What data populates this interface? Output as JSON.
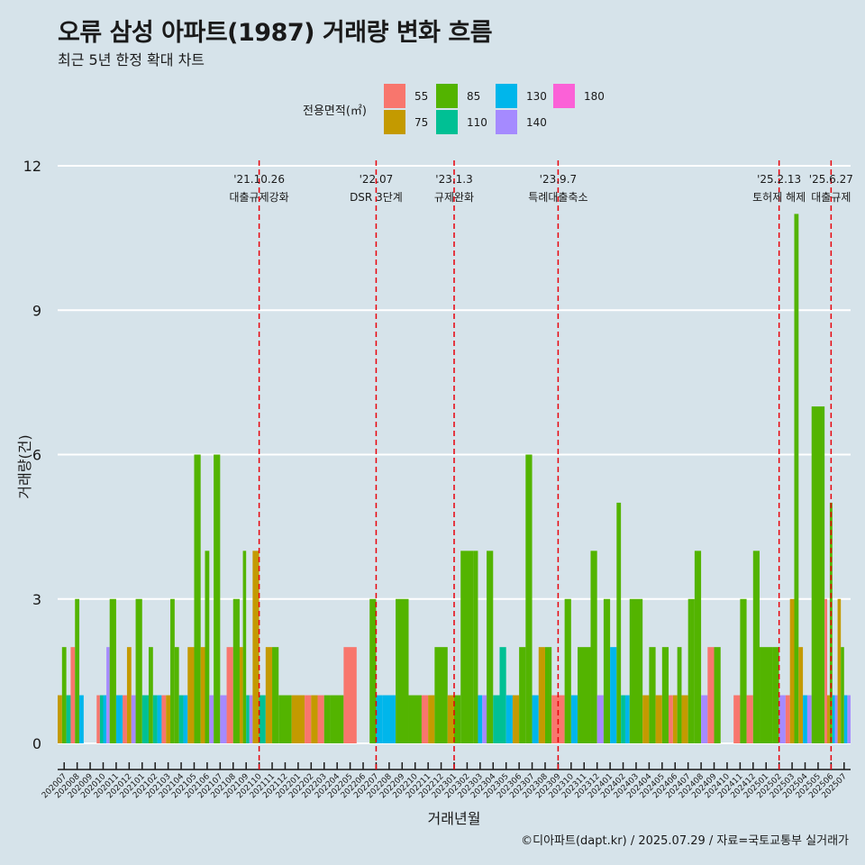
{
  "chart_data": {
    "type": "bar",
    "title": "오류 삼성 아파트(1987) 거래량 변화 흐름",
    "subtitle": "최근 5년 한정 확대 차트",
    "xlabel": "거래년월",
    "ylabel": "거래량(건)",
    "ylim": [
      0,
      12
    ],
    "y_ticks": [
      "0",
      "3",
      "6",
      "9",
      "12"
    ],
    "grid": true,
    "legend_position": "top",
    "legend": {
      "title": "전용면적(㎡)",
      "entries": [
        {
          "label": "55",
          "color": "#F8766D"
        },
        {
          "label": "75",
          "color": "#C49A00"
        },
        {
          "label": "85",
          "color": "#53B400"
        },
        {
          "label": "110",
          "color": "#00C094"
        },
        {
          "label": "130",
          "color": "#00B6EB"
        },
        {
          "label": "140",
          "color": "#A58AFF"
        },
        {
          "label": "180",
          "color": "#FB61D7"
        }
      ]
    },
    "categories": [
      "202007",
      "202008",
      "202009",
      "202010",
      "202011",
      "202012",
      "202101",
      "202102",
      "202103",
      "202104",
      "202105",
      "202106",
      "202107",
      "202108",
      "202109",
      "202110",
      "202111",
      "202112",
      "202201",
      "202202",
      "202203",
      "202204",
      "202205",
      "202206",
      "202207",
      "202208",
      "202209",
      "202210",
      "202211",
      "202212",
      "202301",
      "202302",
      "202303",
      "202304",
      "202305",
      "202306",
      "202307",
      "202308",
      "202309",
      "202310",
      "202311",
      "202312",
      "202401",
      "202402",
      "202403",
      "202404",
      "202405",
      "202406",
      "202407",
      "202408",
      "202409",
      "202410",
      "202411",
      "202412",
      "202501",
      "202502",
      "202503",
      "202504",
      "202505",
      "202506",
      "202507"
    ],
    "series": [
      {
        "name": "55",
        "values": [
          0,
          2,
          0,
          1,
          0,
          1,
          0,
          0,
          1,
          0,
          0,
          0,
          0,
          2,
          0,
          0,
          0,
          0,
          0,
          1,
          1,
          0,
          2,
          0,
          0,
          0,
          0,
          0,
          1,
          0,
          0,
          0,
          0,
          0,
          0,
          0,
          0,
          0,
          1,
          0,
          0,
          0,
          0,
          0,
          0,
          0,
          0,
          1,
          0,
          0,
          2,
          0,
          1,
          1,
          0,
          0,
          1,
          0,
          0,
          3,
          0
        ]
      },
      {
        "name": "75",
        "values": [
          1,
          0,
          0,
          0,
          0,
          2,
          0,
          0,
          1,
          0,
          2,
          2,
          0,
          0,
          2,
          4,
          2,
          0,
          1,
          1,
          0,
          0,
          0,
          0,
          0,
          0,
          0,
          0,
          1,
          0,
          1,
          0,
          0,
          0,
          0,
          1,
          0,
          2,
          0,
          0,
          0,
          0,
          0,
          0,
          0,
          1,
          1,
          1,
          1,
          0,
          0,
          0,
          0,
          0,
          0,
          0,
          3,
          2,
          0,
          1,
          3
        ]
      },
      {
        "name": "85",
        "values": [
          2,
          3,
          0,
          0,
          3,
          0,
          3,
          2,
          3,
          2,
          6,
          4,
          6,
          3,
          4,
          0,
          2,
          1,
          0,
          0,
          1,
          1,
          0,
          0,
          3,
          0,
          3,
          1,
          0,
          2,
          1,
          4,
          4,
          4,
          0,
          2,
          6,
          2,
          0,
          3,
          2,
          4,
          3,
          5,
          3,
          2,
          2,
          2,
          3,
          4,
          2,
          0,
          3,
          4,
          2,
          2,
          11,
          0,
          7,
          5,
          2
        ]
      },
      {
        "name": "110",
        "values": [
          1,
          0,
          0,
          1,
          0,
          0,
          1,
          1,
          0,
          1,
          0,
          0,
          0,
          0,
          1,
          1,
          0,
          0,
          0,
          0,
          0,
          0,
          0,
          0,
          0,
          0,
          0,
          0,
          0,
          0,
          0,
          0,
          0,
          1,
          2,
          0,
          0,
          0,
          0,
          0,
          0,
          0,
          0,
          1,
          0,
          0,
          0,
          0,
          0,
          0,
          0,
          0,
          0,
          0,
          0,
          0,
          0,
          0,
          0,
          0,
          0
        ]
      },
      {
        "name": "130",
        "values": [
          0,
          1,
          0,
          1,
          1,
          0,
          0,
          1,
          0,
          1,
          0,
          0,
          0,
          0,
          0,
          0,
          0,
          0,
          0,
          0,
          0,
          0,
          0,
          0,
          1,
          1,
          0,
          0,
          0,
          0,
          0,
          0,
          1,
          0,
          1,
          0,
          1,
          0,
          0,
          1,
          0,
          0,
          2,
          1,
          0,
          0,
          0,
          0,
          0,
          0,
          0,
          0,
          0,
          0,
          0,
          0,
          0,
          1,
          0,
          1,
          1
        ]
      },
      {
        "name": "140",
        "values": [
          0,
          0,
          0,
          2,
          0,
          1,
          0,
          0,
          0,
          0,
          0,
          1,
          1,
          0,
          1,
          0,
          0,
          0,
          0,
          0,
          0,
          0,
          0,
          0,
          0,
          0,
          0,
          0,
          0,
          0,
          0,
          0,
          1,
          0,
          0,
          0,
          0,
          0,
          0,
          0,
          0,
          1,
          0,
          0,
          0,
          0,
          0,
          0,
          0,
          1,
          0,
          0,
          0,
          0,
          0,
          1,
          0,
          1,
          0,
          1,
          1
        ]
      },
      {
        "name": "180",
        "values": [
          0,
          0,
          0,
          0,
          0,
          0,
          0,
          0,
          0,
          0,
          0,
          0,
          0,
          0,
          0,
          0,
          0,
          0,
          0,
          0,
          0,
          0,
          0,
          0,
          0,
          0,
          0,
          0,
          0,
          0,
          0,
          0,
          0,
          0,
          0,
          0,
          0,
          0,
          0,
          0,
          0,
          0,
          0,
          0,
          0,
          0,
          0,
          0,
          0,
          0,
          0,
          0,
          0,
          0,
          0,
          0,
          0,
          0,
          0,
          0,
          0
        ]
      }
    ],
    "annotations": [
      {
        "month": "202110",
        "date": "'21.10.26",
        "label": "대출규제강화"
      },
      {
        "month": "202207",
        "date": "'22.07",
        "label": "DSR 3단계"
      },
      {
        "month": "202301",
        "date": "'23.1.3",
        "label": "규제완화"
      },
      {
        "month": "202309",
        "date": "'23.9.7",
        "label": "특례대출축소"
      },
      {
        "month": "202502",
        "date": "'25.2.13",
        "label": "토허제 해제"
      },
      {
        "month": "202506",
        "date": "'25.6.27",
        "label": "대출규제"
      }
    ],
    "annotation_color": "#E8000B"
  },
  "caption": "©디아파트(dapt.kr) / 2025.07.29 / 자료=국토교통부 실거래가"
}
